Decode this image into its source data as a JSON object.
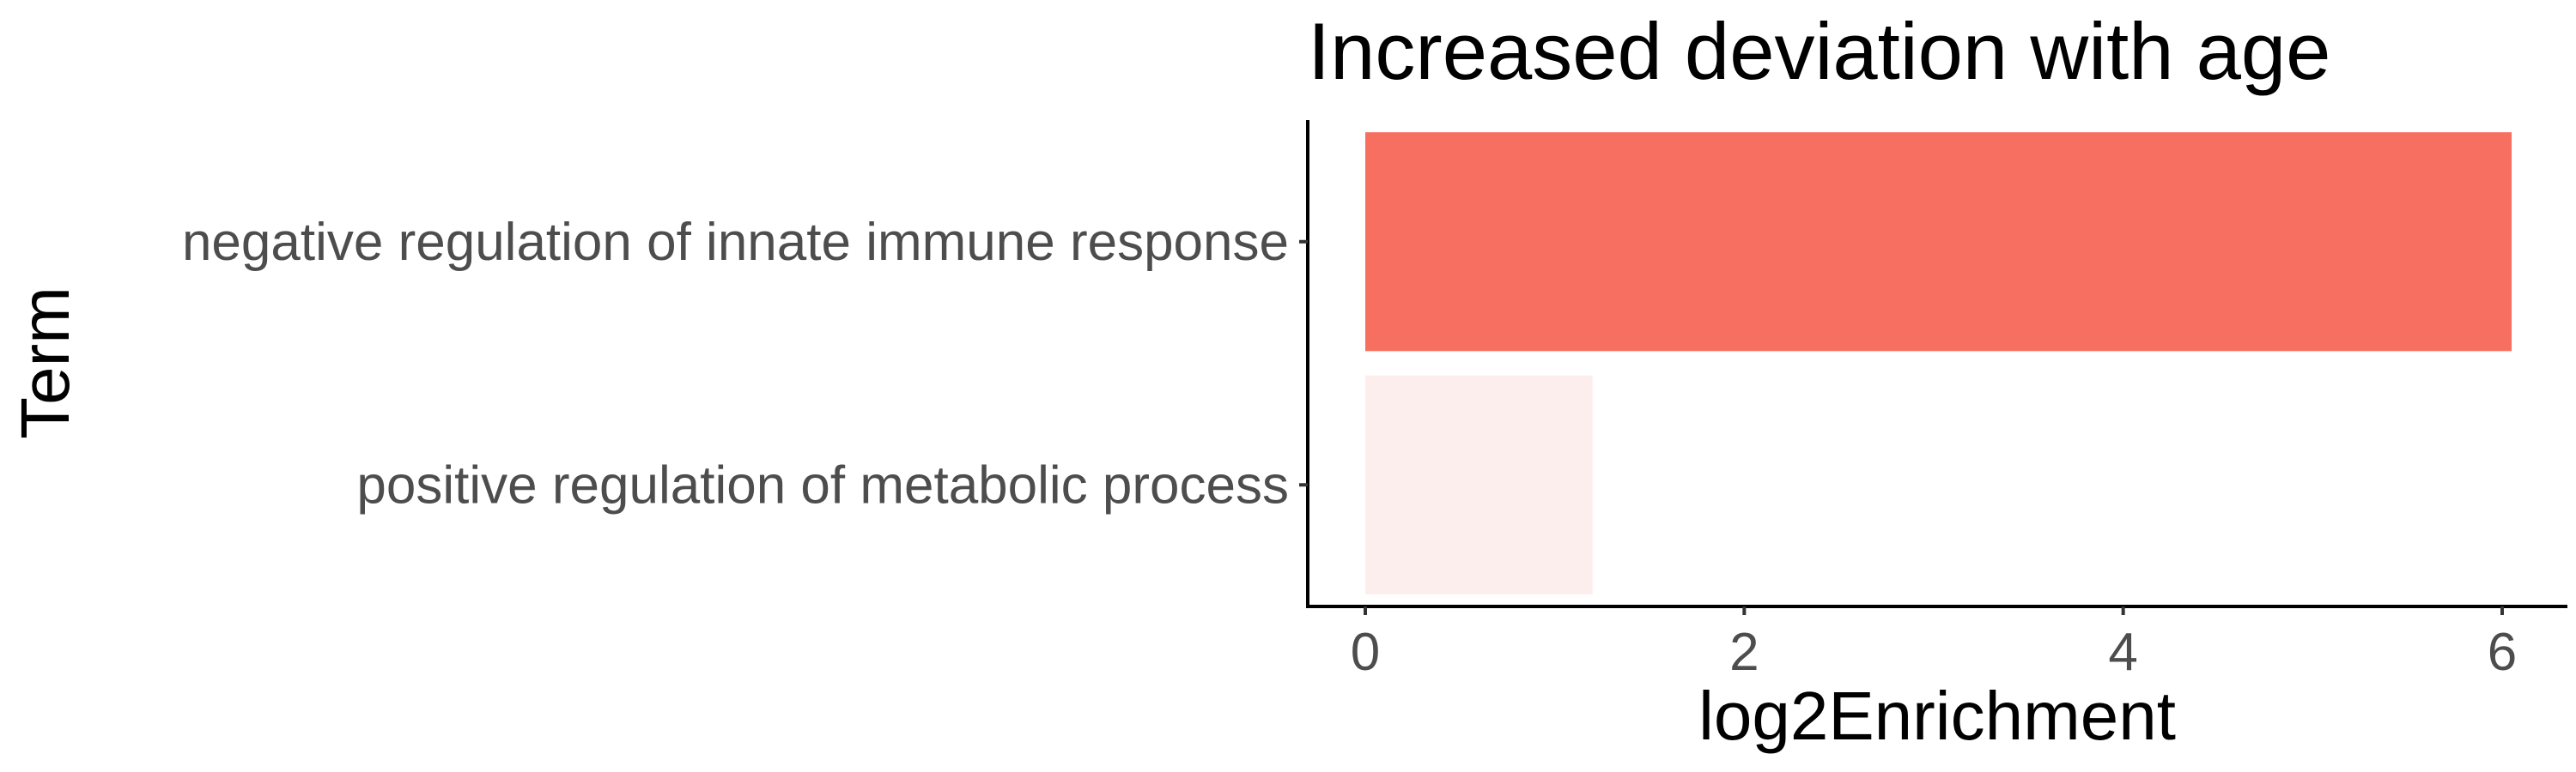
{
  "chart_data": {
    "type": "bar",
    "orientation": "horizontal",
    "title": "Increased deviation with age",
    "xlabel": "log2Enrichment",
    "ylabel": "Term",
    "categories": [
      "negative regulation of innate immune response",
      "positive regulation of metabolic process"
    ],
    "values": [
      6.05,
      1.2
    ],
    "bar_colors": [
      "#f76f61",
      "#fdeeee"
    ],
    "xlim": [
      -0.3,
      6.3
    ],
    "xticks": [
      0,
      2,
      4,
      6
    ],
    "grid": false,
    "legend": "none"
  }
}
